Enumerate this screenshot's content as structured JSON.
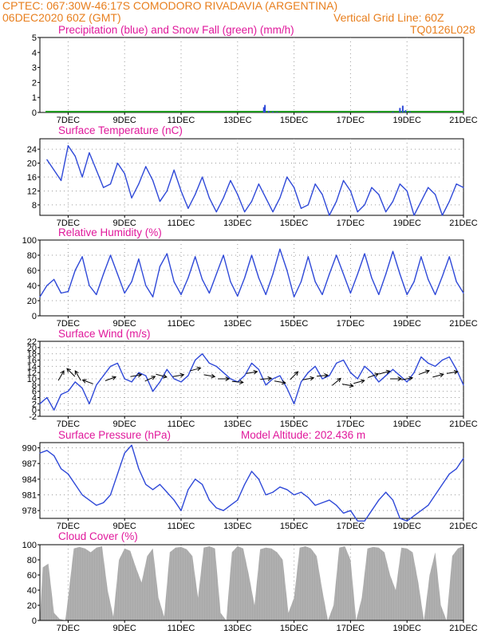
{
  "header": {
    "line1_left": "CPTEC:   067:30W-46:17S   COMODORO RIVADAVIA (ARGENTINA)",
    "line2_left": "06DEC2020 60Z (GMT)",
    "line2_right": "Vertical Grid Line: 60Z",
    "line3_right": "TQ0126L028"
  },
  "colors": {
    "header": "#e87f1e",
    "title": "#e0189b",
    "series_blue": "#2f49d8",
    "series_green": "#1f9b1f",
    "cloud_fill": "#a9a9a9",
    "grid": "#9a9a9a"
  },
  "chart_data": [
    {
      "id": "precip",
      "type": "bar",
      "title": "Precipitation (blue) and Snow Fall (green) (mm/h)",
      "ylim": [
        0,
        5
      ],
      "yticks": [
        "0",
        "1",
        "2",
        "3",
        "4",
        "5"
      ],
      "xticks": [
        "7DEC",
        "9DEC",
        "11DEC",
        "13DEC",
        "15DEC",
        "17DEC",
        "19DEC",
        "21DEC"
      ],
      "series": [
        {
          "name": "Precipitation",
          "color": "blue",
          "x": [
            13.93,
            13.97,
            14.1,
            14.25,
            14.4,
            15.3,
            16.6,
            18.0,
            18.5,
            18.75,
            18.85,
            18.95,
            19.1
          ],
          "values": [
            0.35,
            0.5,
            0.1,
            0.06,
            0.04,
            0.03,
            0.02,
            0.04,
            0.05,
            0.3,
            0.45,
            0.15,
            0.06
          ]
        },
        {
          "name": "Snow Fall",
          "color": "green",
          "values": [
            0.02
          ]
        }
      ]
    },
    {
      "id": "temp",
      "type": "line",
      "title": "Surface Temperature (nC)",
      "ylim": [
        5,
        27
      ],
      "yticks": [
        "8",
        "12",
        "16",
        "20",
        "24"
      ],
      "xticks": [
        "7DEC",
        "9DEC",
        "11DEC",
        "13DEC",
        "15DEC",
        "17DEC",
        "19DEC",
        "21DEC"
      ],
      "x": [
        6.25,
        6.5,
        6.75,
        7.0,
        7.25,
        7.5,
        7.75,
        8.0,
        8.25,
        8.5,
        8.75,
        9.0,
        9.25,
        9.5,
        9.75,
        10.0,
        10.25,
        10.5,
        10.75,
        11.0,
        11.25,
        11.5,
        11.75,
        12.0,
        12.25,
        12.5,
        12.75,
        13.0,
        13.25,
        13.5,
        13.75,
        14.0,
        14.25,
        14.5,
        14.75,
        15.0,
        15.25,
        15.5,
        15.75,
        16.0,
        16.25,
        16.5,
        16.75,
        17.0,
        17.25,
        17.5,
        17.75,
        18.0,
        18.25,
        18.5,
        18.75,
        19.0,
        19.25,
        19.5,
        19.75,
        20.0,
        20.25,
        20.5,
        20.75,
        21.0
      ],
      "values": [
        21,
        18,
        15,
        25,
        22,
        16,
        23,
        18,
        13,
        14,
        20,
        17,
        10,
        14,
        19,
        15,
        9,
        12,
        18,
        12,
        7,
        11,
        16,
        10,
        6,
        10,
        15,
        11,
        6,
        9,
        14,
        10,
        6,
        10,
        16,
        13,
        7,
        8,
        14,
        11,
        5,
        9,
        15,
        12,
        6,
        8,
        13,
        11,
        6,
        9,
        14,
        12,
        5,
        9,
        13,
        11,
        5,
        9,
        14,
        13
      ]
    },
    {
      "id": "rh",
      "type": "line",
      "title": "Relative Humidity (%)",
      "ylim": [
        0,
        100
      ],
      "yticks": [
        "0",
        "20",
        "40",
        "60",
        "80",
        "100"
      ],
      "xticks": [
        "7DEC",
        "9DEC",
        "11DEC",
        "13DEC",
        "15DEC",
        "17DEC",
        "19DEC",
        "21DEC"
      ],
      "x": [
        6.0,
        6.25,
        6.5,
        6.75,
        7.0,
        7.25,
        7.5,
        7.75,
        8.0,
        8.25,
        8.5,
        8.75,
        9.0,
        9.25,
        9.5,
        9.75,
        10.0,
        10.25,
        10.5,
        10.75,
        11.0,
        11.25,
        11.5,
        11.75,
        12.0,
        12.25,
        12.5,
        12.75,
        13.0,
        13.25,
        13.5,
        13.75,
        14.0,
        14.25,
        14.5,
        14.75,
        15.0,
        15.25,
        15.5,
        15.75,
        16.0,
        16.25,
        16.5,
        16.75,
        17.0,
        17.25,
        17.5,
        17.75,
        18.0,
        18.25,
        18.5,
        18.75,
        19.0,
        19.25,
        19.5,
        19.75,
        20.0,
        20.25,
        20.5,
        20.75,
        21.0
      ],
      "values": [
        25,
        40,
        48,
        30,
        32,
        60,
        78,
        40,
        28,
        55,
        80,
        55,
        30,
        45,
        75,
        40,
        25,
        65,
        82,
        45,
        28,
        50,
        78,
        48,
        30,
        55,
        80,
        45,
        26,
        50,
        80,
        50,
        28,
        55,
        88,
        60,
        25,
        45,
        78,
        45,
        28,
        55,
        80,
        55,
        30,
        55,
        82,
        50,
        28,
        55,
        85,
        55,
        28,
        45,
        78,
        48,
        28,
        52,
        78,
        45,
        30
      ]
    },
    {
      "id": "wind",
      "type": "line",
      "title": "Surface Wind (m/s)",
      "ylim": [
        -2,
        22
      ],
      "yticks": [
        "-2",
        "0",
        "2",
        "4",
        "6",
        "8",
        "10",
        "12",
        "14",
        "16",
        "18",
        "20",
        "22"
      ],
      "xticks": [
        "7DEC",
        "9DEC",
        "11DEC",
        "13DEC",
        "15DEC",
        "17DEC",
        "19DEC",
        "21DEC"
      ],
      "x": [
        6.0,
        6.25,
        6.5,
        6.75,
        7.0,
        7.25,
        7.5,
        7.75,
        8.0,
        8.25,
        8.5,
        8.75,
        9.0,
        9.25,
        9.5,
        9.75,
        10.0,
        10.25,
        10.5,
        10.75,
        11.0,
        11.25,
        11.5,
        11.75,
        12.0,
        12.25,
        12.5,
        12.75,
        13.0,
        13.25,
        13.5,
        13.75,
        14.0,
        14.25,
        14.5,
        14.75,
        15.0,
        15.25,
        15.5,
        15.75,
        16.0,
        16.25,
        16.5,
        16.75,
        17.0,
        17.25,
        17.5,
        17.75,
        18.0,
        18.25,
        18.5,
        18.75,
        19.0,
        19.25,
        19.5,
        19.75,
        20.0,
        20.25,
        20.5,
        20.75,
        21.0
      ],
      "values": [
        2,
        4,
        0,
        5,
        6,
        9,
        7,
        2,
        8,
        11,
        14,
        15,
        10,
        9,
        12,
        11,
        6,
        9,
        13,
        10,
        9,
        11,
        16,
        18,
        15,
        14,
        12,
        10,
        9,
        11,
        15,
        13,
        8,
        10,
        11,
        7,
        2,
        9,
        12,
        14,
        10,
        11,
        15,
        16,
        12,
        10,
        14,
        12,
        9,
        11,
        13,
        11,
        9,
        12,
        17,
        15,
        14,
        16,
        17,
        13,
        8
      ],
      "vectors": [
        {
          "x": 6.75,
          "y": 11,
          "deg": 60
        },
        {
          "x": 7.1,
          "y": 12,
          "deg": 135
        },
        {
          "x": 7.35,
          "y": 11,
          "deg": 120
        },
        {
          "x": 7.7,
          "y": 9,
          "deg": 160
        },
        {
          "x": 8.5,
          "y": 10,
          "deg": 20
        },
        {
          "x": 9.4,
          "y": 11,
          "deg": 10
        },
        {
          "x": 9.9,
          "y": 10,
          "deg": 25
        },
        {
          "x": 10.3,
          "y": 11,
          "deg": -15
        },
        {
          "x": 10.9,
          "y": 11,
          "deg": 10
        },
        {
          "x": 11.5,
          "y": 13,
          "deg": 15
        },
        {
          "x": 12.0,
          "y": 11,
          "deg": -10
        },
        {
          "x": 12.5,
          "y": 10,
          "deg": 0
        },
        {
          "x": 13.0,
          "y": 9,
          "deg": -5
        },
        {
          "x": 13.5,
          "y": 12,
          "deg": 10
        },
        {
          "x": 14.0,
          "y": 10,
          "deg": 5
        },
        {
          "x": 14.5,
          "y": 9,
          "deg": -10
        },
        {
          "x": 15.0,
          "y": 11,
          "deg": 45
        },
        {
          "x": 15.5,
          "y": 10,
          "deg": 10
        },
        {
          "x": 16.0,
          "y": 11,
          "deg": 5
        },
        {
          "x": 16.5,
          "y": 9,
          "deg": 40
        },
        {
          "x": 16.9,
          "y": 8,
          "deg": -10
        },
        {
          "x": 17.3,
          "y": 9,
          "deg": 15
        },
        {
          "x": 17.8,
          "y": 11,
          "deg": 20
        },
        {
          "x": 18.2,
          "y": 12,
          "deg": 15
        },
        {
          "x": 18.6,
          "y": 10,
          "deg": 0
        },
        {
          "x": 19.0,
          "y": 10,
          "deg": 10
        },
        {
          "x": 19.6,
          "y": 12,
          "deg": 20
        },
        {
          "x": 20.1,
          "y": 11,
          "deg": 15
        },
        {
          "x": 20.6,
          "y": 12,
          "deg": 10
        }
      ]
    },
    {
      "id": "pressure",
      "type": "line",
      "title": "Surface Pressure (hPa)",
      "annotation": "Model Altitude: 202.436 m",
      "ylim": [
        976.5,
        991
      ],
      "yticks": [
        "978",
        "981",
        "984",
        "987",
        "990"
      ],
      "xticks": [
        "7DEC",
        "9DEC",
        "11DEC",
        "13DEC",
        "15DEC",
        "17DEC",
        "19DEC",
        "21DEC"
      ],
      "x": [
        6.0,
        6.25,
        6.5,
        6.75,
        7.0,
        7.25,
        7.5,
        7.75,
        8.0,
        8.25,
        8.5,
        8.75,
        9.0,
        9.25,
        9.5,
        9.75,
        10.0,
        10.25,
        10.5,
        10.75,
        11.0,
        11.25,
        11.5,
        11.75,
        12.0,
        12.25,
        12.5,
        12.75,
        13.0,
        13.25,
        13.5,
        13.75,
        14.0,
        14.25,
        14.5,
        14.75,
        15.0,
        15.25,
        15.5,
        15.75,
        16.0,
        16.25,
        16.5,
        16.75,
        17.0,
        17.25,
        17.5,
        17.75,
        18.0,
        18.25,
        18.5,
        18.75,
        19.0,
        19.25,
        19.5,
        19.75,
        20.0,
        20.25,
        20.5,
        20.75,
        21.0
      ],
      "values": [
        989,
        989.5,
        988.5,
        986,
        985,
        983,
        981,
        980,
        979,
        979.5,
        981,
        985,
        989,
        990.5,
        986,
        983,
        982,
        983,
        981.5,
        980,
        978,
        982,
        984,
        983,
        980,
        978.5,
        978,
        979,
        980,
        983,
        985.5,
        984,
        981,
        981.5,
        982.5,
        982,
        981,
        981.5,
        980.5,
        979,
        979.5,
        980,
        979,
        977.5,
        978,
        976,
        976,
        978,
        980,
        981.5,
        980,
        976.5,
        976,
        977,
        978,
        979,
        981,
        983,
        985,
        986,
        988
      ]
    },
    {
      "id": "cloud",
      "type": "area",
      "title": "Cloud Cover (%)",
      "ylim": [
        0,
        100
      ],
      "yticks": [
        "0",
        "20",
        "40",
        "60",
        "80",
        "100"
      ],
      "xticks": [
        "7DEC",
        "9DEC",
        "11DEC",
        "13DEC",
        "15DEC",
        "17DEC",
        "19DEC",
        "21DEC"
      ],
      "x": [
        6.0,
        6.1,
        6.3,
        6.5,
        6.7,
        6.9,
        7.0,
        7.2,
        7.4,
        7.6,
        7.8,
        8.0,
        8.2,
        8.4,
        8.6,
        8.8,
        9.0,
        9.2,
        9.4,
        9.6,
        9.8,
        10.0,
        10.2,
        10.4,
        10.6,
        10.8,
        11.0,
        11.2,
        11.4,
        11.6,
        11.8,
        12.0,
        12.2,
        12.4,
        12.6,
        12.8,
        13.0,
        13.2,
        13.4,
        13.6,
        13.8,
        14.0,
        14.2,
        14.4,
        14.6,
        14.8,
        15.0,
        15.2,
        15.4,
        15.6,
        15.8,
        16.0,
        16.2,
        16.4,
        16.6,
        16.8,
        17.0,
        17.2,
        17.4,
        17.6,
        17.8,
        18.0,
        18.2,
        18.4,
        18.6,
        18.8,
        19.0,
        19.2,
        19.4,
        19.6,
        19.8,
        20.0,
        20.2,
        20.4,
        20.6,
        20.8,
        21.0
      ],
      "values": [
        0,
        70,
        75,
        10,
        2,
        0,
        30,
        95,
        97,
        95,
        90,
        96,
        98,
        40,
        5,
        80,
        95,
        92,
        70,
        50,
        85,
        95,
        30,
        5,
        90,
        96,
        97,
        94,
        85,
        30,
        96,
        98,
        95,
        10,
        0,
        90,
        98,
        95,
        60,
        20,
        94,
        96,
        95,
        90,
        80,
        10,
        30,
        96,
        98,
        95,
        85,
        40,
        0,
        20,
        96,
        98,
        80,
        0,
        30,
        95,
        97,
        96,
        90,
        60,
        40,
        96,
        95,
        90,
        50,
        0,
        60,
        90,
        20,
        0,
        85,
        95,
        98
      ]
    }
  ],
  "panels": [
    {
      "title": "Precipitation (blue) and Snow Fall (green) (mm/h)"
    },
    {
      "title": "Surface Temperature (nC)"
    },
    {
      "title": "Relative Humidity (%)"
    },
    {
      "title": "Surface Wind (m/s)"
    },
    {
      "title": "Surface Pressure (hPa)",
      "annotation": "Model Altitude: 202.436 m"
    },
    {
      "title": "Cloud Cover (%)"
    }
  ]
}
